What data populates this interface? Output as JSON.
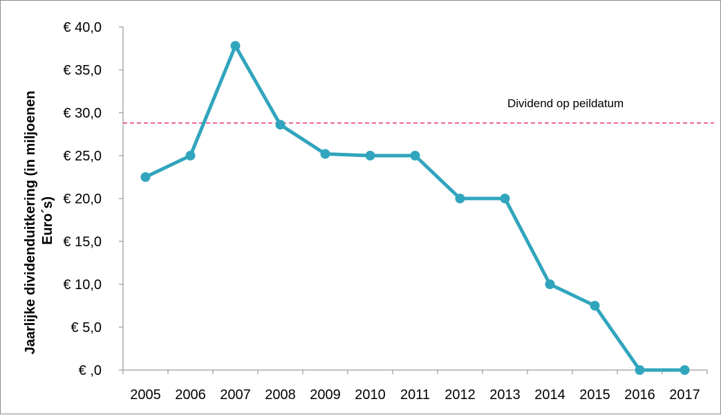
{
  "chart_data": {
    "type": "line",
    "title": "",
    "xlabel": "",
    "ylabel_line1": "Jaarlijke dividenduitkering (in miljoenen",
    "ylabel_line2": "Euro´s)",
    "categories": [
      "2005",
      "2006",
      "2007",
      "2008",
      "2009",
      "2010",
      "2011",
      "2012",
      "2013",
      "2014",
      "2015",
      "2016",
      "2017"
    ],
    "values": [
      22.5,
      25.0,
      37.8,
      28.6,
      25.2,
      25.0,
      25.0,
      20.0,
      20.0,
      10.0,
      7.5,
      0.0,
      0.0
    ],
    "ylim": [
      0,
      40
    ],
    "yticks": [
      0,
      5,
      10,
      15,
      20,
      25,
      30,
      35,
      40
    ],
    "ytick_labels": [
      "€ ,0",
      "€ 5,0",
      "€ 10,0",
      "€ 15,0",
      "€ 20,0",
      "€ 25,0",
      "€ 30,0",
      "€ 35,0",
      "€ 40,0"
    ],
    "reference_line": {
      "value": 28.8,
      "label": "Dividend op peildatum",
      "color": "#e6337a"
    },
    "series_color": "#31a5bd",
    "axis_color": "#868686",
    "grid": false,
    "legend": "none"
  }
}
